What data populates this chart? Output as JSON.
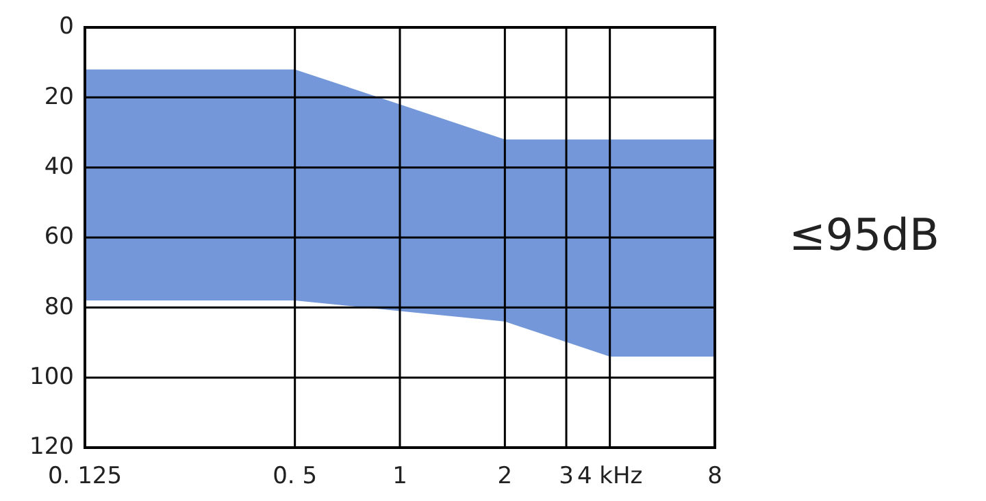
{
  "chart_data": {
    "type": "area",
    "x": [
      0.125,
      0.5,
      1,
      2,
      4,
      8
    ],
    "series": [
      {
        "color": "#7397d8",
        "values": [
          null,
          null,
          null,
          null,
          null,
          null
        ],
        "lower": [
          12,
          12,
          22,
          32,
          32,
          32
        ],
        "upper": [
          78,
          78,
          81,
          84,
          94,
          94
        ]
      }
    ],
    "xlim": [
      0.125,
      8
    ],
    "xticks": [
      {
        "value": 0.125,
        "label": "0. 125"
      },
      {
        "value": 0.5,
        "label": "0. 5"
      },
      1,
      2,
      3,
      {
        "value": 4,
        "label": "4 kHz"
      },
      8
    ],
    "ylim": [
      120,
      0
    ],
    "yticks": [
      0,
      20,
      40,
      60,
      80,
      100,
      120
    ],
    "log": "x",
    "grid": true,
    "annotations": [
      "≤95dB"
    ]
  }
}
